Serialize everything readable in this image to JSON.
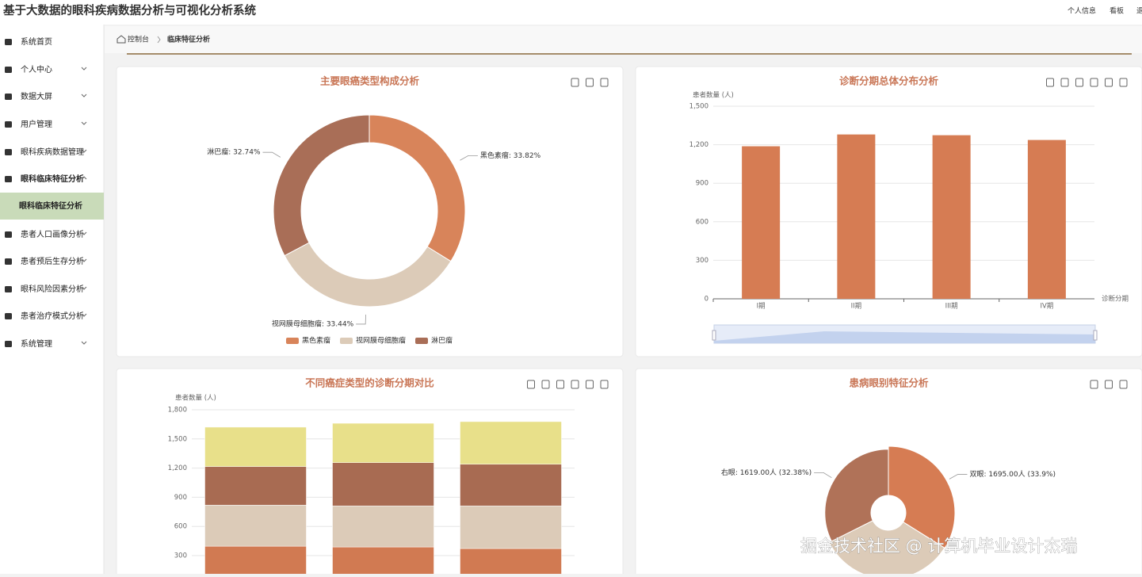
{
  "header": {
    "title": "基于大数据的眼科疾病数据分析与可视化分析系统",
    "links": [
      "个人信息",
      "看板",
      "退"
    ]
  },
  "sidebar": {
    "items": [
      "系统首页",
      "个人中心",
      "数据大屏",
      "用户管理",
      "眼科疾病数据管理",
      "眼科临床特征分析",
      "眼科临床特征分析",
      "患者人口画像分析",
      "患者预后生存分析",
      "眼科风险因素分析",
      "患者治疗模式分析",
      "系统管理"
    ]
  },
  "breadcrumb": [
    "控制台",
    "临床特征分析"
  ],
  "chart_data": [
    {
      "type": "pie",
      "title": "主要眼癌类型构成分析",
      "categories": [
        "黑色素瘤",
        "视网膜母细胞瘤",
        "淋巴瘤"
      ],
      "values": [
        33.82,
        33.44,
        32.74
      ],
      "value_labels": [
        "黑色素瘤: 33.82%",
        "视网膜母细胞瘤: 33.44%",
        "淋巴瘤: 32.74%"
      ],
      "colors": [
        "#d8845a",
        "#dccbb8",
        "#a96e57"
      ],
      "legend": "bottom"
    },
    {
      "type": "bar",
      "title": "诊断分期总体分布分析",
      "ylabel": "患者数量 (人)",
      "xlabel": "诊断分期",
      "categories": [
        "I期",
        "II期",
        "III期",
        "IV期"
      ],
      "values": [
        1188,
        1280,
        1274,
        1237
      ],
      "color": "#d67c53",
      "ylim": [
        0,
        1500
      ],
      "yticks": [
        0,
        300,
        600,
        900,
        {
          "value": 1200,
          "label": "1,200"
        },
        {
          "value": 1500,
          "label": "1,500"
        }
      ],
      "grid": true
    },
    {
      "type": "stacked_bar",
      "title": "不同癌症类型的诊断分期对比",
      "ylabel": "患者数量 (人)",
      "categories": [
        null,
        null,
        null
      ],
      "series": [
        {
          "color": "#d17a52",
          "values": [
            397,
            389,
            373
          ]
        },
        {
          "color": "#dccbb8",
          "values": [
            422,
            422,
            438
          ]
        },
        {
          "color": "#a86b52",
          "values": [
            397,
            445,
            429
          ]
        },
        {
          "color": "#e8e08a",
          "values": [
            405,
            405,
            438
          ]
        }
      ],
      "ylim": [
        0,
        1800
      ],
      "yticks": [
        300,
        600,
        900,
        {
          "value": 1200,
          "label": "1,200"
        },
        {
          "value": 1500,
          "label": "1,500"
        },
        {
          "value": 1800,
          "label": "1,800"
        }
      ],
      "grid": true
    },
    {
      "type": "rose",
      "title": "患病眼别特征分析",
      "categories": [
        "双眼",
        null,
        "右眼"
      ],
      "values": [
        1695,
        1686,
        1619
      ],
      "value_labels": [
        "双眼: 1695.00人 (33.9%)",
        null,
        "右眼: 1619.00人 (32.38%)"
      ],
      "colors": [
        "#d67c53",
        "#dccbb8",
        "#b07258"
      ]
    }
  ],
  "watermark": "掘金技术社区 @ 计算机毕业设计杰瑞"
}
